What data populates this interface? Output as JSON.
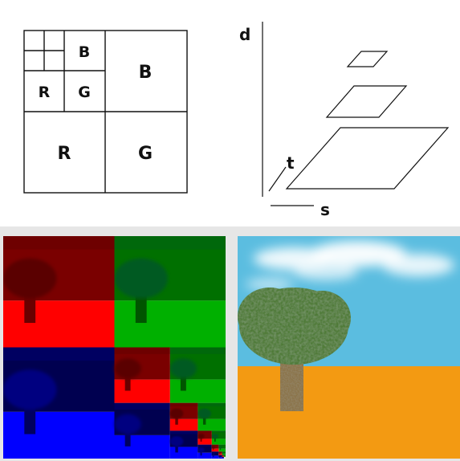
{
  "quadtree": {
    "big": {
      "b": "B",
      "r": "R",
      "g": "G"
    },
    "mid": {
      "b": "B",
      "r": "R",
      "g": "G"
    }
  },
  "pyramid": {
    "axis_vertical": "d",
    "axis_s": "s",
    "axis_t": "t"
  },
  "colors": {
    "red": "#ff0000",
    "green": "#00b000",
    "blue": "#0000ff",
    "sky": "#5bbde0",
    "ground": "#f39a12",
    "trunk": "#8b7348",
    "foliage": "#4f7a38"
  }
}
